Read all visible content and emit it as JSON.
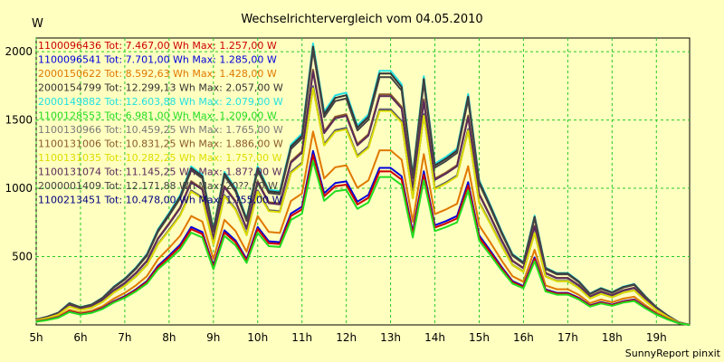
{
  "chart_data": {
    "type": "line",
    "title": "Wechselrichtervergleich vom 04.05.2010",
    "ylabel": "W",
    "footer": "SunnyReport pinxit",
    "ylim": [
      0,
      2100
    ],
    "yticks": [
      500,
      1000,
      1500,
      2000
    ],
    "xticks": [
      "5h",
      "6h",
      "7h",
      "8h",
      "9h",
      "10h",
      "11h",
      "12h",
      "13h",
      "14h",
      "15h",
      "16h",
      "17h",
      "18h",
      "19h"
    ],
    "x_hours": [
      5.0,
      5.25,
      5.5,
      5.75,
      6.0,
      6.25,
      6.5,
      6.75,
      7.0,
      7.25,
      7.5,
      7.75,
      8.0,
      8.25,
      8.5,
      8.75,
      9.0,
      9.25,
      9.5,
      9.75,
      10.0,
      10.25,
      10.5,
      10.75,
      11.0,
      11.25,
      11.5,
      11.75,
      12.0,
      12.25,
      12.5,
      12.75,
      13.0,
      13.25,
      13.5,
      13.75,
      14.0,
      14.25,
      14.5,
      14.75,
      15.0,
      15.25,
      15.5,
      15.75,
      16.0,
      16.25,
      16.5,
      16.75,
      17.0,
      17.25,
      17.5,
      17.75,
      18.0,
      18.25,
      18.5,
      18.75,
      19.0,
      19.25,
      19.5,
      19.75
    ],
    "grid": true,
    "legend_placement": "top-left",
    "series": [
      {
        "name": "1100096436 Tot: 7.467,00 Wh Max: 1.257,00 W",
        "color": "#cc0000",
        "scale": 0.604
      },
      {
        "name": "1100096541 Tot: 7.701,00 Wh Max: 1.285,00 W",
        "color": "#0000dd",
        "scale": 0.618
      },
      {
        "name": "2000150622 Tot: 8.592,63 Wh Max: 1.428,00 W",
        "color": "#e07800",
        "scale": 0.687
      },
      {
        "name": "2000154799 Tot: 12.299,13 Wh Max: 2.057,00 W",
        "color": "#333333",
        "scale": 0.989
      },
      {
        "name": "2000149882 Tot: 12.603,88 Wh Max: 2.079,00 W",
        "color": "#22e0e0",
        "scale": 1.0
      },
      {
        "name": "1100128553 Tot: 6.981,00 Wh Max: 1.209,00 W",
        "color": "#22dd22",
        "scale": 0.582
      },
      {
        "name": "1100130966 Tot: 10.459,25 Wh Max: 1.765,00 W",
        "color": "#7a7a7a",
        "scale": 0.849
      },
      {
        "name": "1100131006 Tot: 10.831,25 Wh Max: 1.886,00 W",
        "color": "#8a5a2a",
        "scale": 0.907
      },
      {
        "name": "1100131035 Tot: 10.282,25 Wh Max: 1.75?,00 W",
        "color": "#dddd00",
        "scale": 0.842
      },
      {
        "name": "1100131074 Tot: 11.145,25 Wh Max: 1.87?,00 W",
        "color": "#5a2a5a",
        "scale": 0.9
      },
      {
        "name": "2000001409 Tot: 12.171,88 Wh Max: 20??,00 W",
        "color": "#444444",
        "scale": 0.975
      },
      {
        "name": "1100213451 Tot: 10.478,00 Wh Max: 1.?55,00 W",
        "color": "#000080",
        "scale": 0.844
      }
    ],
    "reference_profile": [
      40,
      60,
      90,
      160,
      130,
      150,
      200,
      280,
      340,
      420,
      520,
      700,
      820,
      950,
      1160,
      1100,
      700,
      1120,
      1000,
      780,
      1160,
      990,
      980,
      1320,
      1400,
      2060,
      1560,
      1680,
      1700,
      1460,
      1540,
      1860,
      1860,
      1760,
      1100,
      1820,
      1180,
      1230,
      1290,
      1690,
      1060,
      880,
      690,
      520,
      460,
      800,
      420,
      380,
      380,
      320,
      230,
      270,
      240,
      280,
      300,
      210,
      130,
      70,
      20,
      0
    ]
  }
}
